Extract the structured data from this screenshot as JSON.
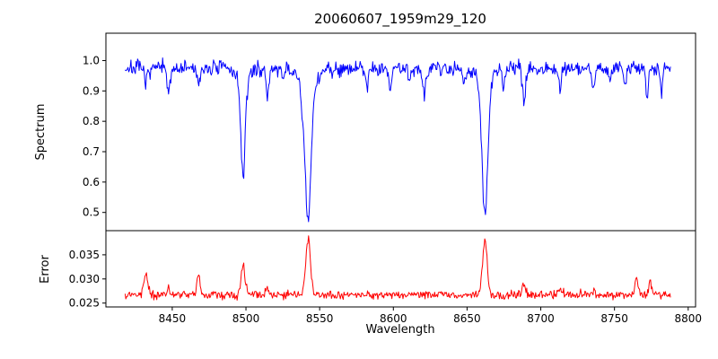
{
  "title": "20060607_1959m29_120",
  "axes": {
    "xlabel": "Wavelength",
    "xlim": [
      8405,
      8805
    ],
    "xticks": [
      8450,
      8500,
      8550,
      8600,
      8650,
      8700,
      8750,
      8800
    ],
    "xtick_labels": [
      "8450",
      "8500",
      "8550",
      "8600",
      "8650",
      "8700",
      "8750",
      "8800"
    ],
    "frame_color": "#000000",
    "grid": false
  },
  "chart_data": [
    {
      "type": "line",
      "name": "spectrum",
      "ylabel": "Spectrum",
      "color": "#0000ff",
      "ylim": [
        0.44,
        1.09
      ],
      "yticks": [
        0.5,
        0.6,
        0.7,
        0.8,
        0.9,
        1.0
      ],
      "ytick_labels": [
        "0.5",
        "0.6",
        "0.7",
        "0.8",
        "0.9",
        "1.0"
      ],
      "x_start": 8418,
      "x_end": 8788,
      "x_step": 0.5,
      "continuum": 0.975,
      "noise_sigma": 0.013,
      "seed": 7,
      "absorption_lines": [
        [
          8498.0,
          0.315,
          1.5
        ],
        [
          8498.0,
          0.04,
          4.0
        ],
        [
          8542.1,
          0.45,
          2.0
        ],
        [
          8542.1,
          0.06,
          6.0
        ],
        [
          8662.1,
          0.44,
          1.9
        ],
        [
          8662.1,
          0.05,
          5.0
        ],
        [
          8432.0,
          0.06,
          0.9
        ],
        [
          8447.5,
          0.09,
          1.0
        ],
        [
          8468.0,
          0.07,
          0.9
        ],
        [
          8514.5,
          0.1,
          1.0
        ],
        [
          8525.0,
          0.05,
          0.8
        ],
        [
          8538.0,
          0.05,
          0.8
        ],
        [
          8582.0,
          0.06,
          0.9
        ],
        [
          8598.0,
          0.07,
          0.9
        ],
        [
          8611.0,
          0.05,
          0.8
        ],
        [
          8621.0,
          0.08,
          1.0
        ],
        [
          8648.0,
          0.05,
          0.8
        ],
        [
          8674.5,
          0.06,
          0.8
        ],
        [
          8688.5,
          0.11,
          1.1
        ],
        [
          8713.0,
          0.07,
          0.9
        ],
        [
          8736.0,
          0.07,
          0.9
        ],
        [
          8747.0,
          0.05,
          0.8
        ],
        [
          8757.0,
          0.06,
          0.8
        ],
        [
          8772.0,
          0.09,
          0.9
        ],
        [
          8782.0,
          0.06,
          0.8
        ]
      ]
    },
    {
      "type": "line",
      "name": "error",
      "ylabel": "Error",
      "color": "#ff0000",
      "ylim": [
        0.0242,
        0.04
      ],
      "yticks": [
        0.025,
        0.03,
        0.035
      ],
      "ytick_labels": [
        "0.025",
        "0.030",
        "0.035"
      ],
      "x_start": 8418,
      "x_end": 8788,
      "x_step": 0.5,
      "baseline": 0.0267,
      "noise_sigma": 0.00045,
      "seed": 99,
      "peaks": [
        [
          8432.0,
          0.0045,
          1.2
        ],
        [
          8447.5,
          0.0018,
          0.9
        ],
        [
          8468.0,
          0.0042,
          1.1
        ],
        [
          8498.0,
          0.0058,
          1.4
        ],
        [
          8514.5,
          0.0016,
          1.0
        ],
        [
          8542.1,
          0.0115,
          1.6
        ],
        [
          8662.1,
          0.0118,
          1.5
        ],
        [
          8688.5,
          0.0022,
          1.0
        ],
        [
          8713.0,
          0.0012,
          0.9
        ],
        [
          8736.0,
          0.0012,
          0.9
        ],
        [
          8765.0,
          0.0035,
          1.0
        ],
        [
          8774.0,
          0.0028,
          0.9
        ]
      ]
    }
  ]
}
